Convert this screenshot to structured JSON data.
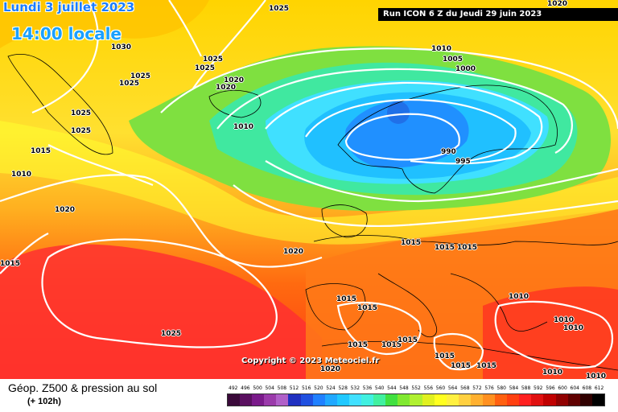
{
  "header": {
    "date": "Lundi 3 juillet 2023",
    "time": "14:00 locale",
    "run": "Run ICON 6 Z du Jeudi 29 juin 2023"
  },
  "copyright": "Copyright © 2023 Meteociel.fr",
  "footer": {
    "product": "Géop. Z500 & pression au sol",
    "hours": "(+ 102h)"
  },
  "scale": {
    "labels": [
      "492",
      "496",
      "500",
      "504",
      "508",
      "512",
      "516",
      "520",
      "524",
      "528",
      "532",
      "536",
      "540",
      "544",
      "548",
      "552",
      "556",
      "560",
      "564",
      "568",
      "572",
      "576",
      "580",
      "584",
      "588",
      "592",
      "596",
      "600",
      "604",
      "608",
      "612"
    ],
    "colors": [
      "#3a0a3a",
      "#5a1060",
      "#7a1a8a",
      "#9a3aaa",
      "#b060c8",
      "#2030c0",
      "#2050e0",
      "#2080ff",
      "#20a8ff",
      "#20c8ff",
      "#40e0ff",
      "#40f0e0",
      "#40f0a0",
      "#40e040",
      "#80e830",
      "#b0f030",
      "#e0f020",
      "#ffff20",
      "#fff040",
      "#ffd040",
      "#ffb030",
      "#ff9020",
      "#ff6010",
      "#ff4010",
      "#ff2020",
      "#e01010",
      "#c00000",
      "#900000",
      "#600000",
      "#300000",
      "#000000"
    ]
  },
  "isobars": [
    {
      "value": "1025"
    },
    {
      "value": "1020"
    },
    {
      "value": "1030"
    },
    {
      "value": "1025"
    },
    {
      "value": "1025"
    },
    {
      "value": "1025"
    },
    {
      "value": "1025"
    },
    {
      "value": "1020"
    },
    {
      "value": "1020"
    },
    {
      "value": "1025"
    },
    {
      "value": "1025"
    },
    {
      "value": "1010"
    },
    {
      "value": "1015"
    },
    {
      "value": "1010"
    },
    {
      "value": "1020"
    },
    {
      "value": "1015"
    },
    {
      "value": "1010"
    },
    {
      "value": "1005"
    },
    {
      "value": "1000"
    },
    {
      "value": "990"
    },
    {
      "value": "995"
    },
    {
      "value": "1020"
    },
    {
      "value": "1015"
    },
    {
      "value": "1015"
    },
    {
      "value": "1015"
    },
    {
      "value": "1015"
    },
    {
      "value": "1015"
    },
    {
      "value": "1025"
    },
    {
      "value": "1015"
    },
    {
      "value": "1015"
    },
    {
      "value": "1015"
    },
    {
      "value": "1015"
    },
    {
      "value": "1015"
    },
    {
      "value": "1015"
    },
    {
      "value": "1020"
    },
    {
      "value": "1010"
    },
    {
      "value": "1010"
    },
    {
      "value": "1010"
    },
    {
      "value": "1010"
    },
    {
      "value": "1010"
    }
  ]
}
